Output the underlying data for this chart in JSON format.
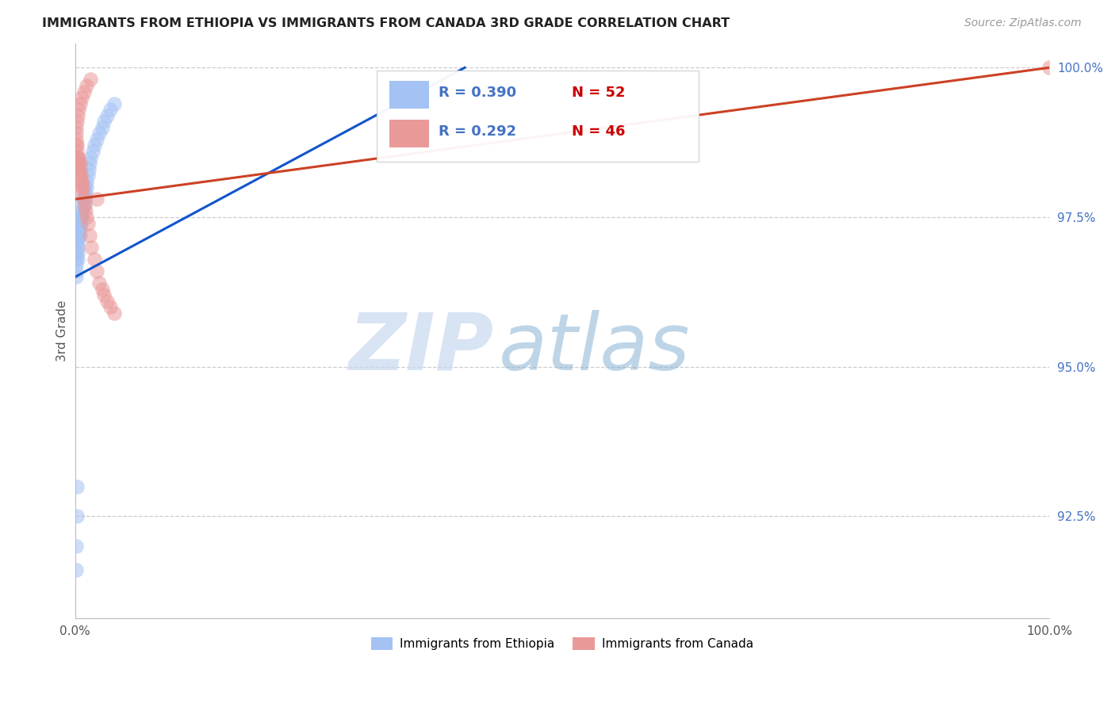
{
  "title": "IMMIGRANTS FROM ETHIOPIA VS IMMIGRANTS FROM CANADA 3RD GRADE CORRELATION CHART",
  "source": "Source: ZipAtlas.com",
  "ylabel": "3rd Grade",
  "xlim": [
    0.0,
    1.0
  ],
  "ylim": [
    0.908,
    1.004
  ],
  "x_tick_positions": [
    0.0,
    0.2,
    0.4,
    0.6,
    0.8,
    1.0
  ],
  "x_tick_labels": [
    "0.0%",
    "",
    "",
    "",
    "",
    "100.0%"
  ],
  "y_tick_positions": [
    0.925,
    0.95,
    0.975,
    1.0
  ],
  "y_tick_labels": [
    "92.5%",
    "95.0%",
    "97.5%",
    "100.0%"
  ],
  "legend_labels": [
    "Immigrants from Ethiopia",
    "Immigrants from Canada"
  ],
  "scatter_color_ethiopia": "#a4c2f4",
  "scatter_color_canada": "#ea9999",
  "line_color_ethiopia": "#1155cc",
  "line_color_canada": "#cc4125",
  "watermark_zip": "ZIP",
  "watermark_atlas": "atlas",
  "ethiopia_x": [
    0.001,
    0.001,
    0.001,
    0.001,
    0.001,
    0.002,
    0.002,
    0.002,
    0.002,
    0.003,
    0.003,
    0.003,
    0.003,
    0.004,
    0.004,
    0.004,
    0.005,
    0.005,
    0.005,
    0.006,
    0.006,
    0.006,
    0.007,
    0.007,
    0.008,
    0.008,
    0.008,
    0.009,
    0.009,
    0.01,
    0.01,
    0.011,
    0.011,
    0.012,
    0.012,
    0.013,
    0.014,
    0.015,
    0.016,
    0.018,
    0.02,
    0.022,
    0.025,
    0.028,
    0.03,
    0.033,
    0.036,
    0.04,
    0.001,
    0.001,
    0.002,
    0.002
  ],
  "ethiopia_y": [
    0.969,
    0.968,
    0.967,
    0.966,
    0.965,
    0.97,
    0.971,
    0.972,
    0.973,
    0.968,
    0.969,
    0.97,
    0.971,
    0.972,
    0.973,
    0.974,
    0.972,
    0.973,
    0.974,
    0.975,
    0.974,
    0.975,
    0.975,
    0.976,
    0.976,
    0.977,
    0.978,
    0.977,
    0.978,
    0.979,
    0.98,
    0.978,
    0.979,
    0.98,
    0.981,
    0.982,
    0.983,
    0.984,
    0.985,
    0.986,
    0.987,
    0.988,
    0.989,
    0.99,
    0.991,
    0.992,
    0.993,
    0.994,
    0.916,
    0.92,
    0.925,
    0.93
  ],
  "canada_x": [
    0.001,
    0.001,
    0.001,
    0.002,
    0.002,
    0.002,
    0.003,
    0.003,
    0.004,
    0.004,
    0.004,
    0.005,
    0.005,
    0.005,
    0.006,
    0.006,
    0.007,
    0.007,
    0.008,
    0.008,
    0.009,
    0.01,
    0.011,
    0.012,
    0.013,
    0.015,
    0.017,
    0.02,
    0.022,
    0.025,
    0.028,
    0.03,
    0.033,
    0.036,
    0.04,
    0.001,
    0.002,
    0.003,
    0.004,
    0.005,
    0.007,
    0.009,
    0.012,
    0.016,
    0.022,
    1.0
  ],
  "canada_y": [
    0.987,
    0.988,
    0.989,
    0.985,
    0.986,
    0.987,
    0.984,
    0.985,
    0.983,
    0.984,
    0.985,
    0.982,
    0.983,
    0.984,
    0.981,
    0.982,
    0.98,
    0.981,
    0.979,
    0.98,
    0.978,
    0.977,
    0.976,
    0.975,
    0.974,
    0.972,
    0.97,
    0.968,
    0.966,
    0.964,
    0.963,
    0.962,
    0.961,
    0.96,
    0.959,
    0.99,
    0.991,
    0.992,
    0.993,
    0.994,
    0.995,
    0.996,
    0.997,
    0.998,
    0.978,
    1.0
  ],
  "eth_line_x0": 0.0,
  "eth_line_y0": 0.965,
  "eth_line_x1": 0.4,
  "eth_line_y1": 1.0,
  "can_line_x0": 0.0,
  "can_line_y0": 0.978,
  "can_line_x1": 1.0,
  "can_line_y1": 1.0
}
